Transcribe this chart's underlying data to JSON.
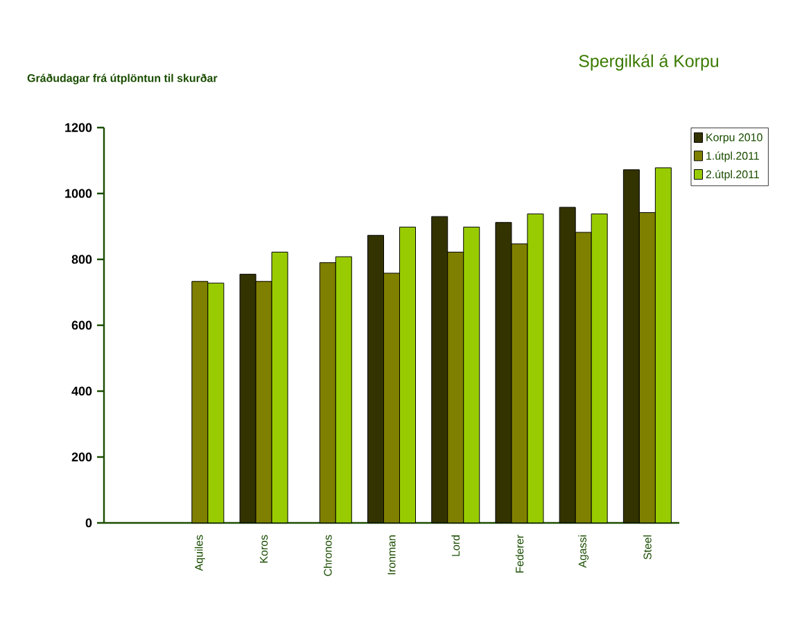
{
  "chart_data": {
    "type": "bar",
    "title": "Spergilkál á Korpu",
    "ylabel": "Gráðudagar frá útplöntun til skurðar",
    "categories": [
      null,
      "Aquiles",
      "Koros",
      "Chronos",
      "Ironman",
      "Lord",
      "Federer",
      "Agassi",
      "Steel"
    ],
    "series": [
      {
        "name": "Korpu 2010",
        "color": "#333300",
        "values": [
          null,
          null,
          755,
          null,
          873,
          930,
          912,
          958,
          1072
        ]
      },
      {
        "name": "1.útpl.2011",
        "color": "#808000",
        "values": [
          null,
          733,
          733,
          790,
          758,
          822,
          847,
          882,
          942
        ]
      },
      {
        "name": "2.útpl.2011",
        "color": "#99cc00",
        "values": [
          null,
          728,
          822,
          808,
          898,
          898,
          938,
          938,
          1078
        ]
      }
    ],
    "ylim": [
      0,
      1200
    ],
    "yticks": [
      0,
      200,
      400,
      600,
      800,
      1000,
      1200
    ],
    "legend": "top right"
  }
}
